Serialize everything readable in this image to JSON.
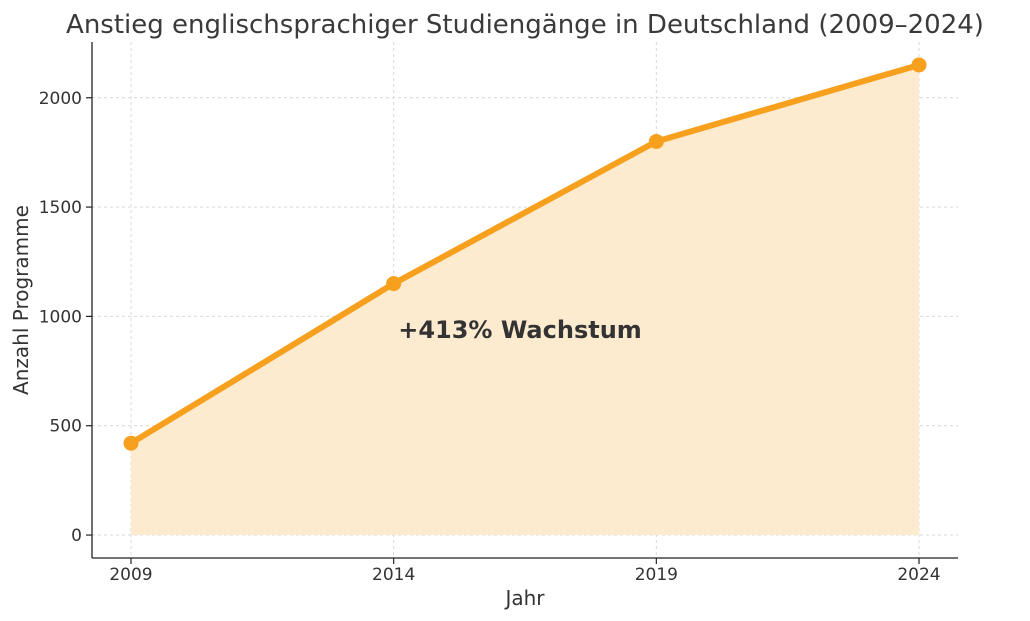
{
  "chart_data": {
    "type": "line",
    "title": "Anstieg englischsprachiger Studiengänge in Deutschland (2009–2024)",
    "xlabel": "Jahr",
    "ylabel": "Anzahl Programme",
    "x": [
      "2009",
      "2014",
      "2019",
      "2024"
    ],
    "series": [
      {
        "values": [
          420,
          1150,
          1800,
          2150
        ]
      }
    ],
    "yticks": [
      0,
      500,
      1000,
      1500,
      2000
    ],
    "ylim": [
      -105,
      2255
    ],
    "grid": true,
    "area_fill": true,
    "annotation": "+413% Wachstum",
    "colors": {
      "line": "#f7a01e",
      "area": "#fdebd0"
    }
  }
}
